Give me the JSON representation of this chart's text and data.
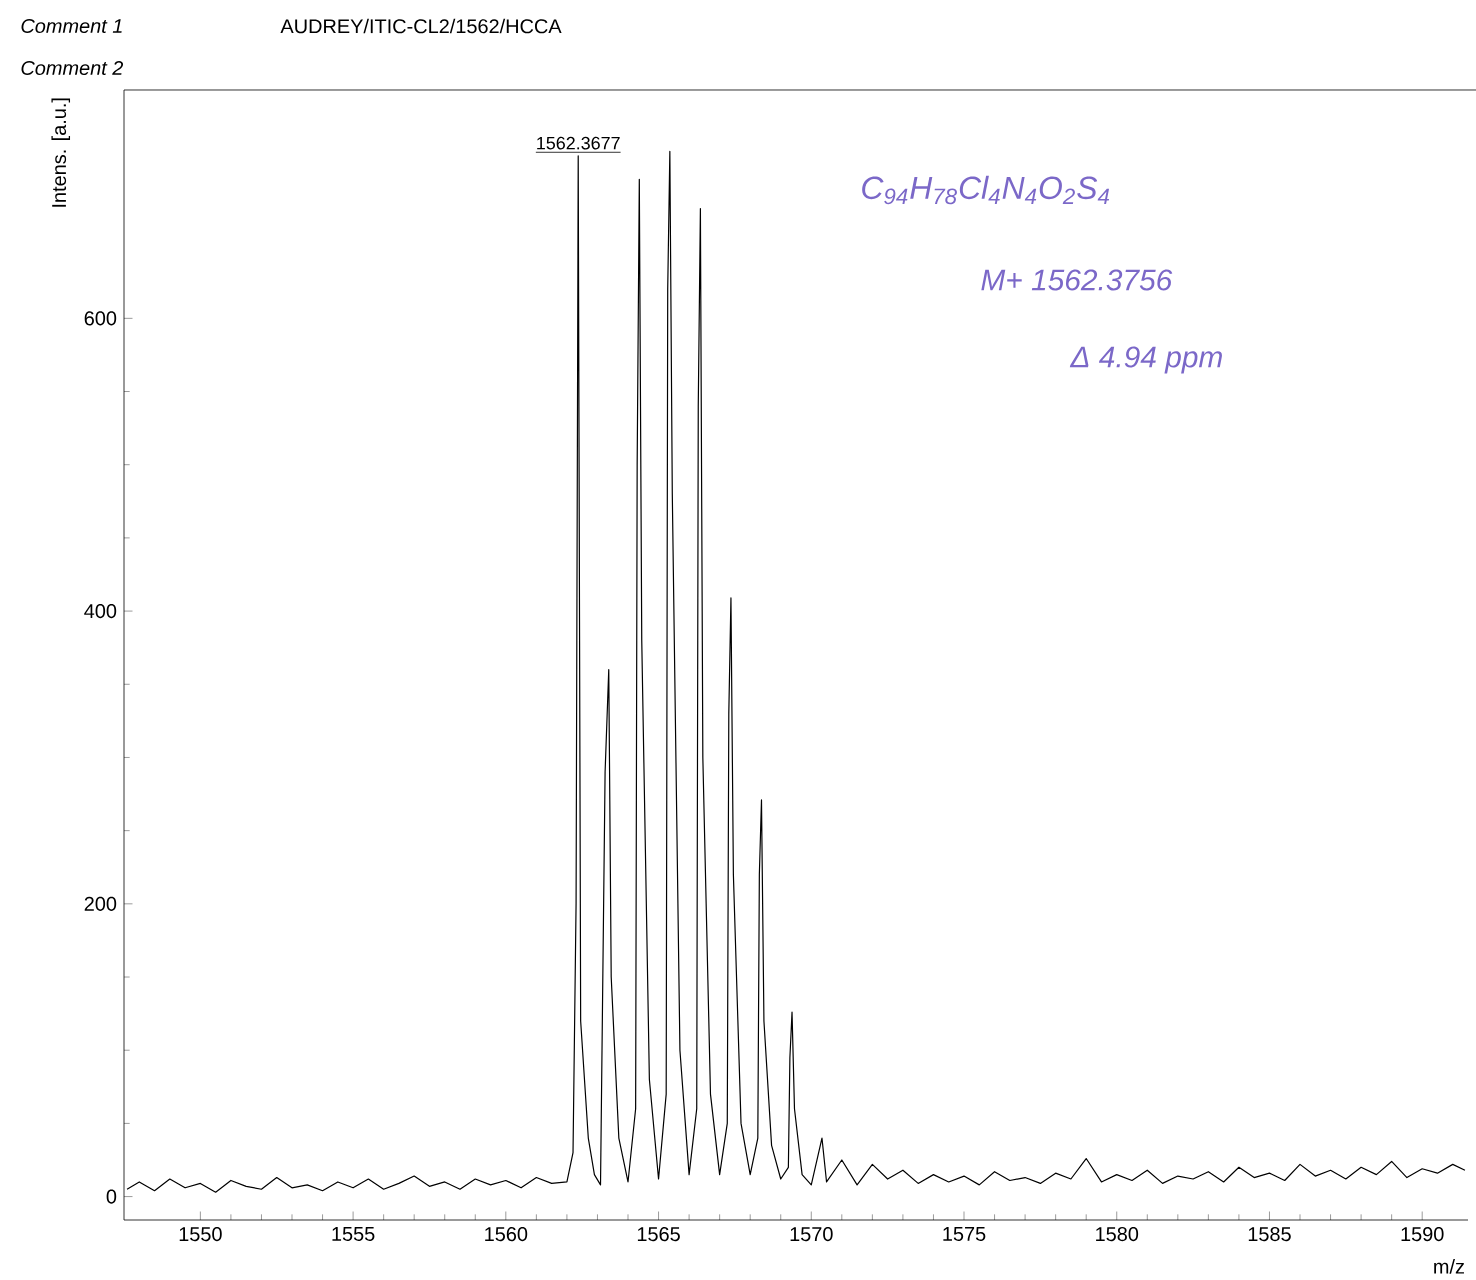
{
  "chart_data": {
    "type": "line",
    "xlabel": "m/z",
    "ylabel": "Intens. [a.u.]",
    "xlim": [
      1547.5,
      1591.5
    ],
    "ylim": [
      -16,
      756
    ],
    "xticks": [
      1550,
      1555,
      1560,
      1565,
      1570,
      1575,
      1580,
      1585,
      1590
    ],
    "yticks": [
      0,
      200,
      400,
      600
    ],
    "annotations": [
      "Comment 1",
      "AUDREY/ITIC-CL2/1562/HCCA",
      "Comment 2",
      {
        "text": "1562.3677",
        "x": 1562.37,
        "y": 711
      },
      "C$_{94}$H$_{78}$Cl$_{4}$N$_{4}$O$_{2}$S$_{4}$",
      "M+ 1562.3756",
      "Δ 4.94 ppm"
    ],
    "series": [
      {
        "color": "#000000",
        "x": [
          1547.6,
          1548.0,
          1548.5,
          1549.0,
          1549.5,
          1550.0,
          1550.5,
          1551.0,
          1551.5,
          1552.0,
          1552.5,
          1553.0,
          1553.5,
          1554.0,
          1554.5,
          1555.0,
          1555.5,
          1556.0,
          1556.5,
          1557.0,
          1557.5,
          1558.0,
          1558.5,
          1559.0,
          1559.5,
          1560.0,
          1560.5,
          1561.0,
          1561.5,
          1562.0,
          1562.2,
          1562.3,
          1562.37,
          1562.45,
          1562.7,
          1562.9,
          1563.1,
          1563.25,
          1563.37,
          1563.45,
          1563.7,
          1564.0,
          1564.25,
          1564.3,
          1564.37,
          1564.45,
          1564.7,
          1565.0,
          1565.25,
          1565.3,
          1565.37,
          1565.45,
          1565.7,
          1566.0,
          1566.25,
          1566.3,
          1566.37,
          1566.45,
          1566.7,
          1567.0,
          1567.25,
          1567.3,
          1567.37,
          1567.45,
          1567.7,
          1568.0,
          1568.25,
          1568.3,
          1568.37,
          1568.45,
          1568.7,
          1569.0,
          1569.25,
          1569.3,
          1569.37,
          1569.45,
          1569.7,
          1570.0,
          1570.35,
          1570.5,
          1571.0,
          1571.5,
          1572.0,
          1572.5,
          1573.0,
          1573.5,
          1574.0,
          1574.5,
          1575.0,
          1575.5,
          1576.0,
          1576.5,
          1577.0,
          1577.5,
          1578.0,
          1578.5,
          1579.0,
          1579.5,
          1580.0,
          1580.5,
          1581.0,
          1581.5,
          1582.0,
          1582.5,
          1583.0,
          1583.5,
          1584.0,
          1584.5,
          1585.0,
          1585.5,
          1586.0,
          1586.5,
          1587.0,
          1587.5,
          1588.0,
          1588.5,
          1589.0,
          1589.5,
          1590.0,
          1590.5,
          1591.0,
          1591.4
        ],
        "values": [
          5,
          10,
          4,
          12,
          6,
          9,
          3,
          11,
          7,
          5,
          13,
          6,
          8,
          4,
          10,
          6,
          12,
          5,
          9,
          14,
          7,
          10,
          5,
          12,
          8,
          11,
          6,
          13,
          9,
          10,
          30,
          200,
          711,
          120,
          40,
          15,
          8,
          290,
          360,
          150,
          40,
          10,
          60,
          500,
          695,
          380,
          80,
          12,
          70,
          620,
          714,
          480,
          100,
          15,
          60,
          540,
          675,
          300,
          70,
          15,
          50,
          330,
          409,
          220,
          50,
          15,
          40,
          220,
          271,
          120,
          35,
          12,
          20,
          95,
          126,
          60,
          15,
          8,
          40,
          10,
          25,
          8,
          22,
          12,
          18,
          9,
          15,
          10,
          14,
          8,
          17,
          11,
          13,
          9,
          16,
          12,
          26,
          10,
          15,
          11,
          18,
          9,
          14,
          12,
          17,
          10,
          20,
          13,
          16,
          11,
          22,
          14,
          18,
          12,
          20,
          15,
          24,
          13,
          19,
          16,
          22,
          18
        ]
      }
    ]
  }
}
